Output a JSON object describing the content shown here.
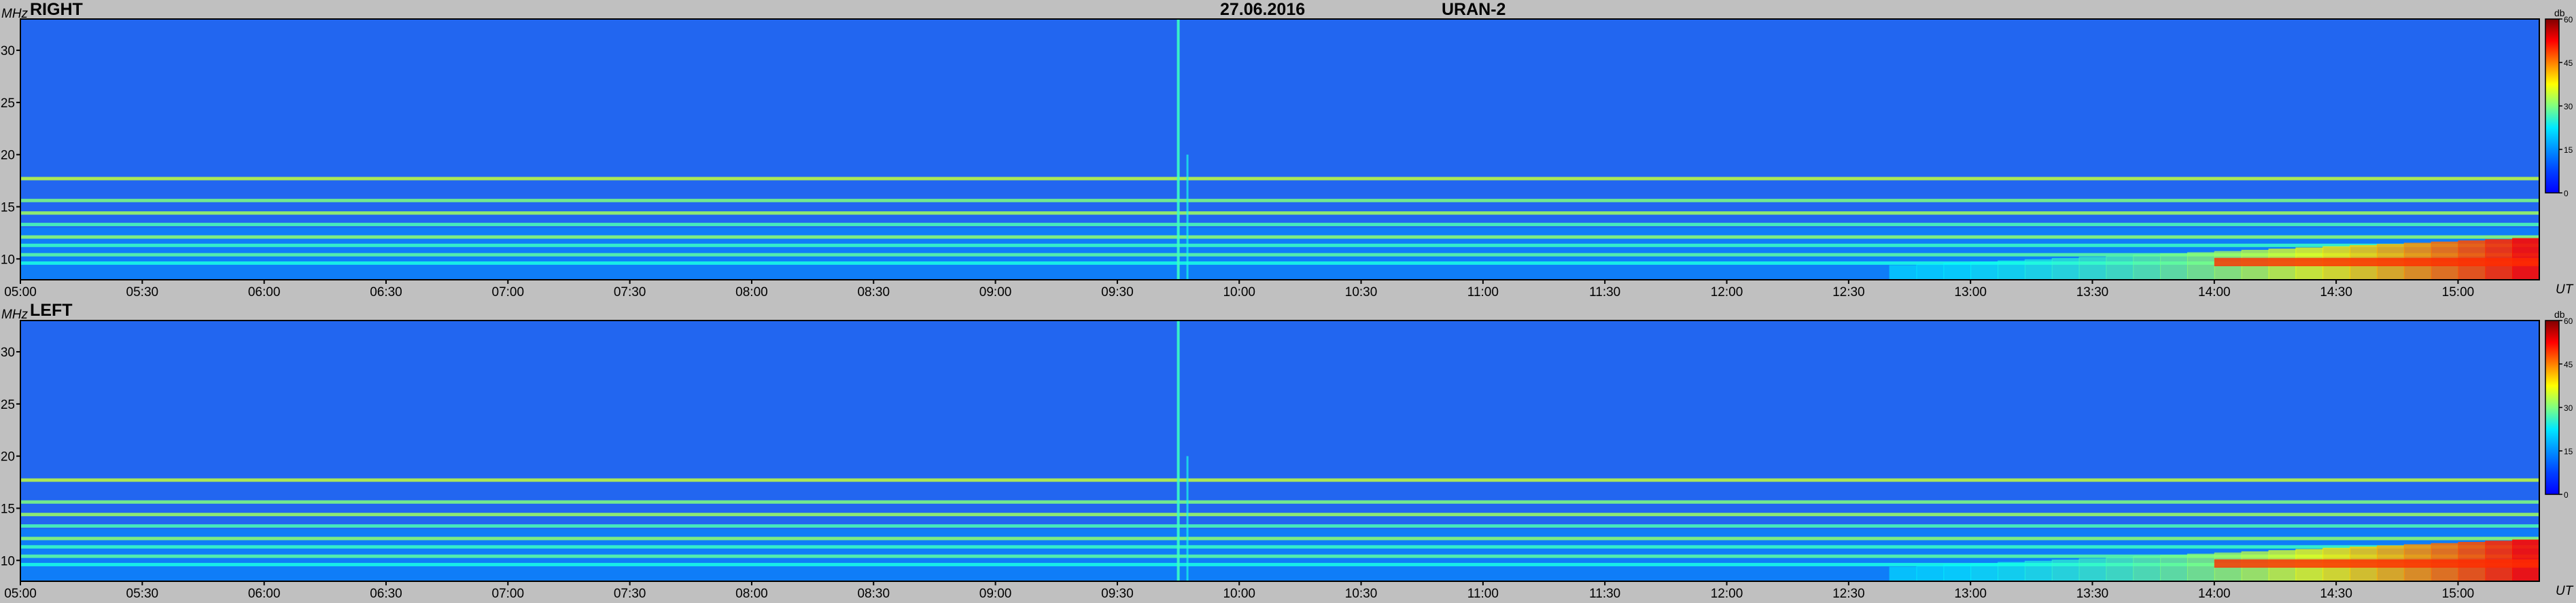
{
  "header": {
    "date": "27.06.2016",
    "station": "URAN-2"
  },
  "colorbar": {
    "unit": "db",
    "ticks": [
      0,
      15,
      30,
      45,
      60
    ]
  },
  "colors": {
    "background": "#c0c0c0",
    "cmap": [
      "#00007f",
      "#0000ff",
      "#007fff",
      "#00ffff",
      "#7fff7f",
      "#ffff00",
      "#ff7f00",
      "#ff0000",
      "#7f0000"
    ]
  },
  "chart_data": [
    {
      "type": "heatmap",
      "title": "RIGHT",
      "xlabel": "UT",
      "ylabel": "MHz",
      "x_ticks": [
        "05:00",
        "05:30",
        "06:00",
        "06:30",
        "07:00",
        "07:30",
        "08:00",
        "08:30",
        "09:00",
        "09:30",
        "10:00",
        "10:30",
        "11:00",
        "11:30",
        "12:00",
        "12:30",
        "13:00",
        "13:30",
        "14:00",
        "14:30",
        "15:00"
      ],
      "y_ticks": [
        10,
        15,
        20,
        25,
        30
      ],
      "x_range": [
        "05:00",
        "15:20"
      ],
      "y_range": [
        8,
        33
      ],
      "z_range": [
        0,
        60
      ],
      "z_unit": "db",
      "features": {
        "rfi_bands_mhz": [
          17.7,
          15.6,
          14.4,
          13.3,
          12.1,
          11.3,
          10.4,
          9.6
        ],
        "broadband_burst_ut": "09:45",
        "evening_enhancement": {
          "start_ut": "12:40",
          "peak_ut": "15:00",
          "freq_mhz": [
            8,
            12
          ]
        }
      }
    },
    {
      "type": "heatmap",
      "title": "LEFT",
      "xlabel": "UT",
      "ylabel": "MHz",
      "x_ticks": [
        "05:00",
        "05:30",
        "06:00",
        "06:30",
        "07:00",
        "07:30",
        "08:00",
        "08:30",
        "09:00",
        "09:30",
        "10:00",
        "10:30",
        "11:00",
        "11:30",
        "12:00",
        "12:30",
        "13:00",
        "13:30",
        "14:00",
        "14:30",
        "15:00"
      ],
      "y_ticks": [
        10,
        15,
        20,
        25,
        30
      ],
      "x_range": [
        "05:00",
        "15:20"
      ],
      "y_range": [
        8,
        33
      ],
      "z_range": [
        0,
        60
      ],
      "z_unit": "db",
      "features": {
        "rfi_bands_mhz": [
          17.7,
          15.6,
          14.4,
          13.3,
          12.1,
          11.3,
          10.4,
          9.6
        ],
        "broadband_burst_ut": "09:45",
        "evening_enhancement": {
          "start_ut": "12:40",
          "peak_ut": "15:00",
          "freq_mhz": [
            8,
            12
          ]
        }
      }
    }
  ]
}
